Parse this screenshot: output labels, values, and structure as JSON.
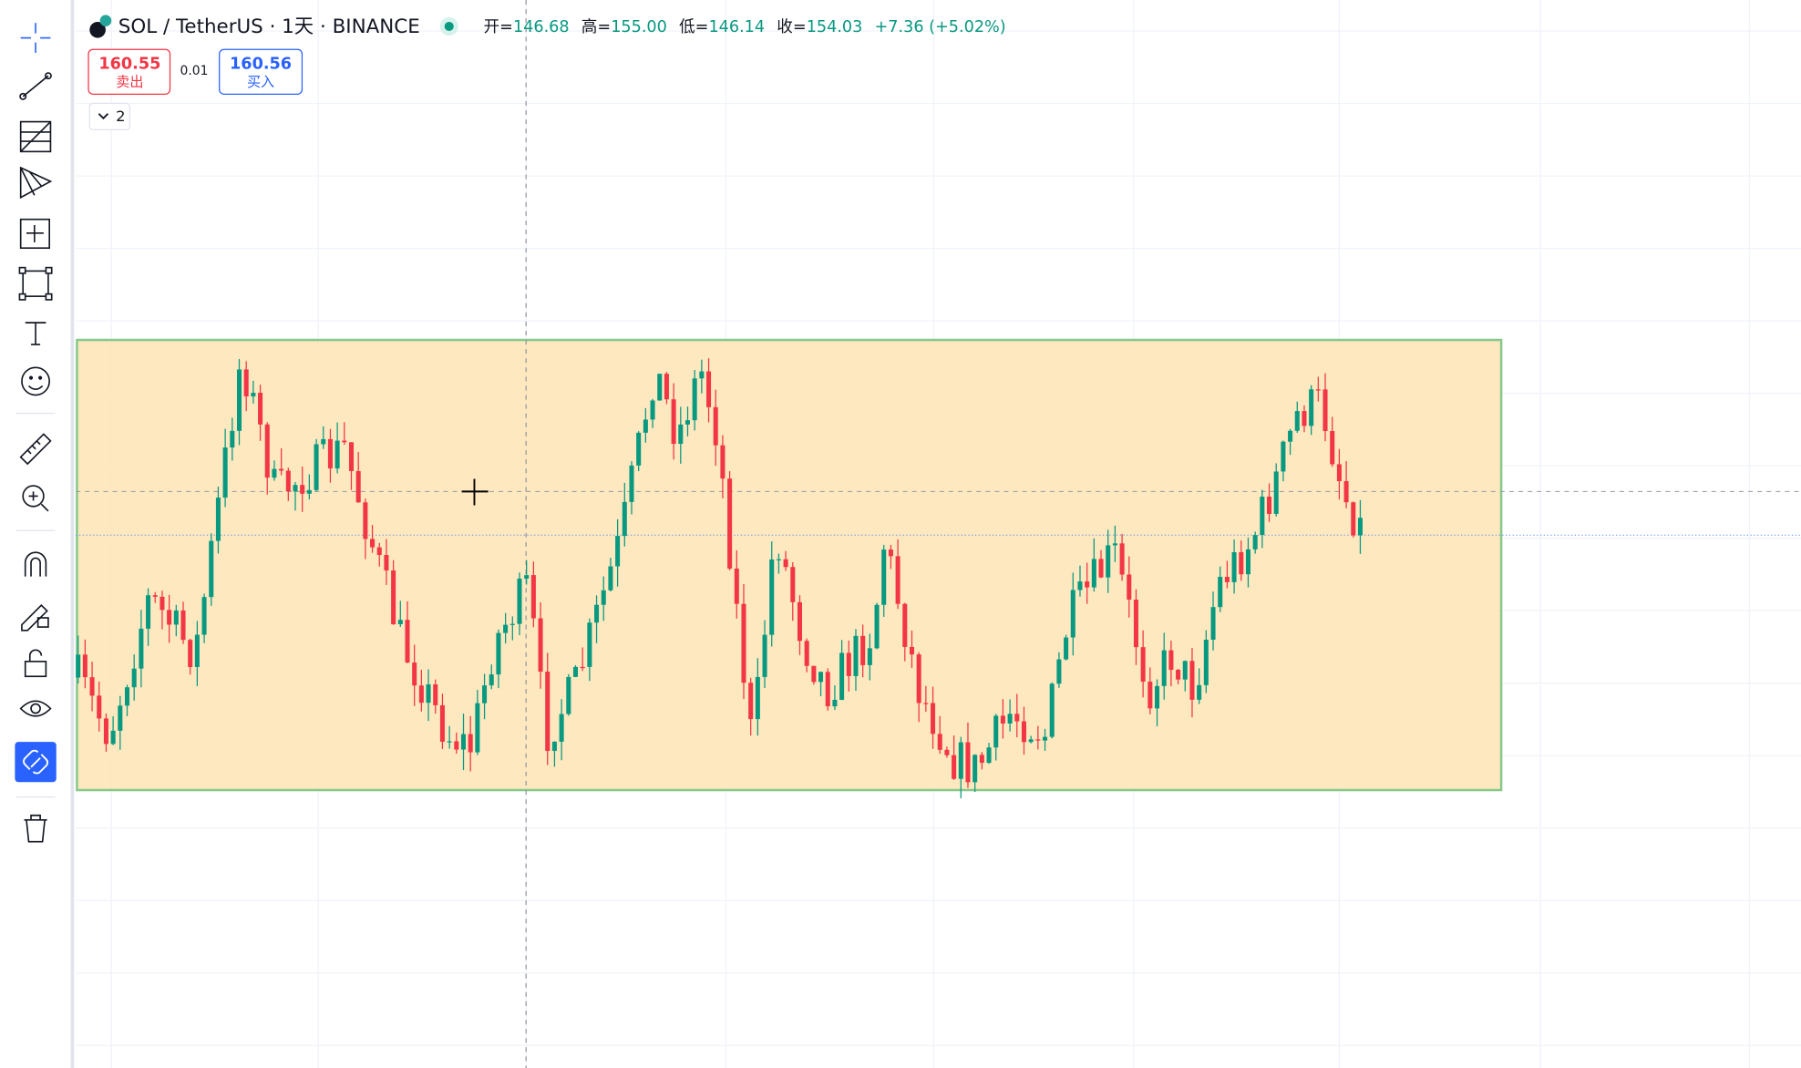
{
  "header": {
    "symbol": "SOL / TetherUS · 1天 · BINANCE",
    "open_label": "开=",
    "open": "146.68",
    "high_label": "高=",
    "high": "155.00",
    "low_label": "低=",
    "low": "146.14",
    "close_label": "收=",
    "close": "154.03",
    "change": "+7.36 (+5.02%)"
  },
  "trade": {
    "sell_price": "160.55",
    "sell_label": "卖出",
    "spread": "0.01",
    "buy_price": "160.56",
    "buy_label": "买入"
  },
  "indicators_toggle": "2"
}
